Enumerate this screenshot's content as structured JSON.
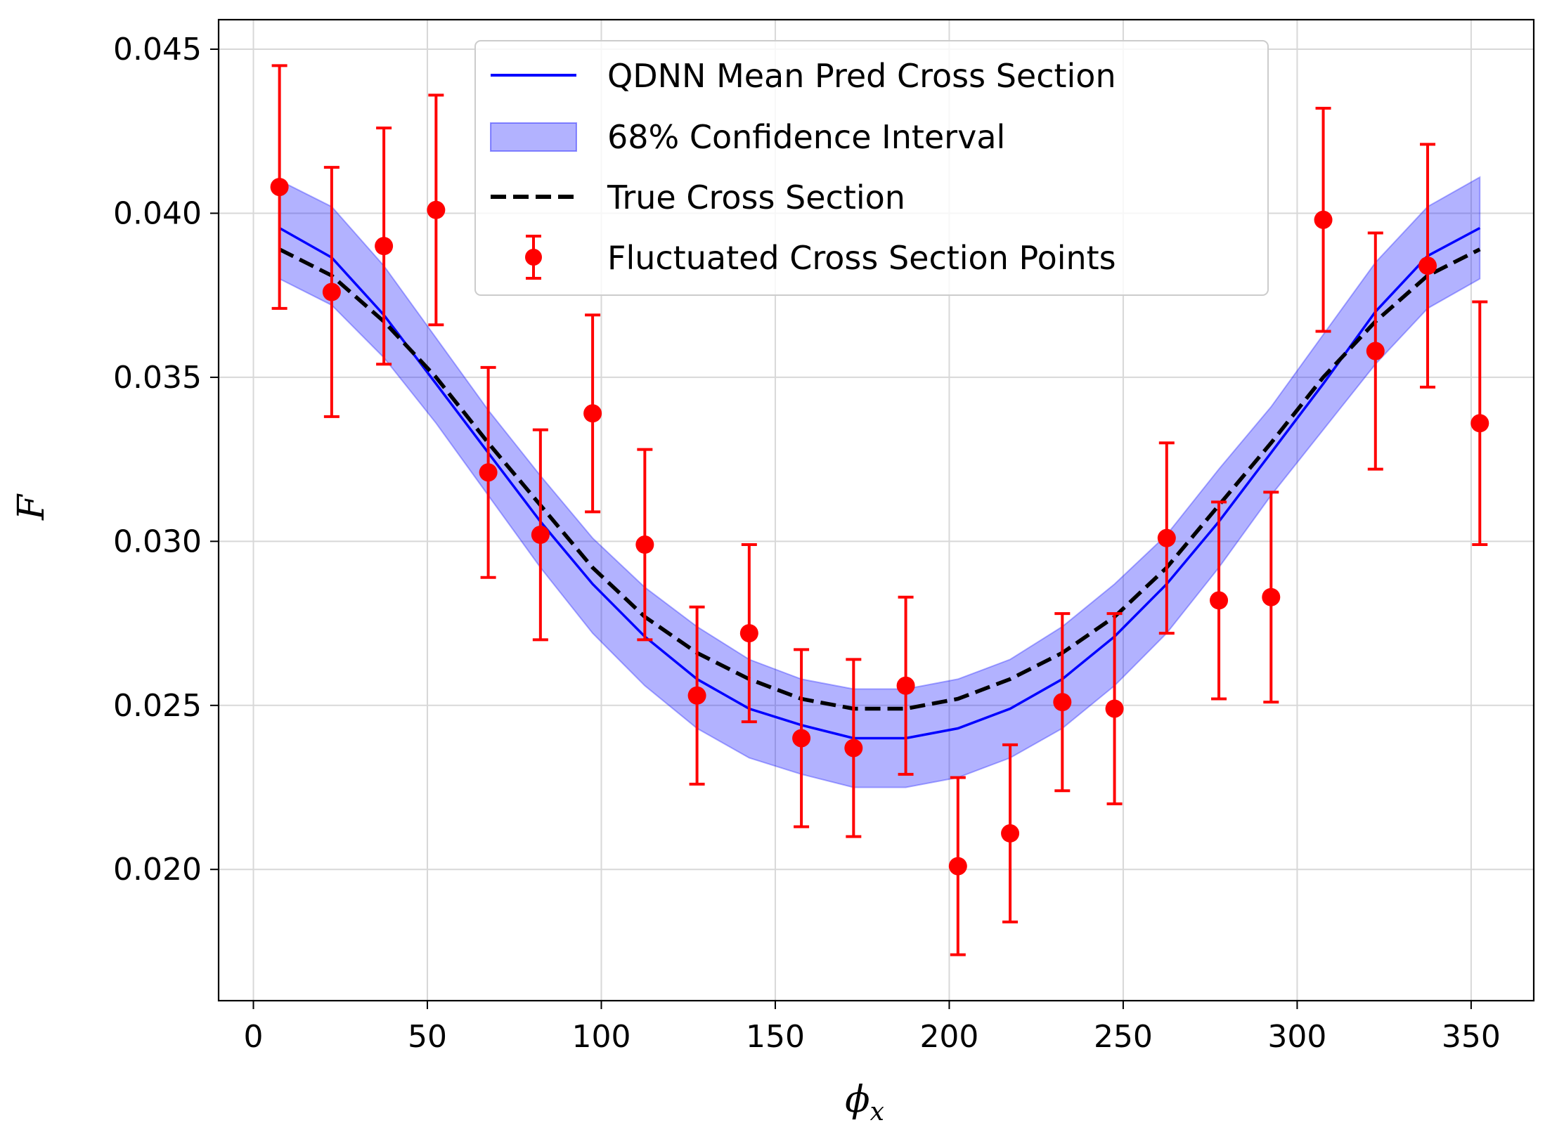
{
  "chart_data": {
    "type": "line",
    "title": "",
    "xlabel_main": "ϕ",
    "xlabel_sub": "x",
    "ylabel": "F",
    "xlim": [
      -10,
      368
    ],
    "ylim": [
      0.016,
      0.0459
    ],
    "xticks": [
      0,
      50,
      100,
      150,
      200,
      250,
      300,
      350
    ],
    "yticks": [
      0.02,
      0.025,
      0.03,
      0.035,
      0.04,
      0.045
    ],
    "xtick_labels": [
      "0",
      "50",
      "100",
      "150",
      "200",
      "250",
      "300",
      "350"
    ],
    "ytick_labels": [
      "0.020",
      "0.025",
      "0.030",
      "0.035",
      "0.040",
      "0.045"
    ],
    "grid": true,
    "legend_position": "top-center",
    "x": [
      7.5,
      22.5,
      37.5,
      52.5,
      67.5,
      82.5,
      97.5,
      112.5,
      127.5,
      142.5,
      157.5,
      172.5,
      187.5,
      202.5,
      217.5,
      232.5,
      247.5,
      262.5,
      277.5,
      292.5,
      307.5,
      322.5,
      337.5,
      352.5
    ],
    "series": [
      {
        "name": "QDNN Mean Pred Cross Section",
        "kind": "line",
        "color": "#0000ff",
        "values": [
          0.03955,
          0.03865,
          0.0369,
          0.0348,
          0.0327,
          0.0306,
          0.0287,
          0.0271,
          0.0258,
          0.0249,
          0.0244,
          0.024,
          0.024,
          0.0243,
          0.0249,
          0.0258,
          0.0271,
          0.0287,
          0.0306,
          0.0327,
          0.0348,
          0.037,
          0.0387,
          0.03955
        ]
      },
      {
        "name": "68% Confidence Interval",
        "kind": "band",
        "color": "#0000ff",
        "lower": [
          0.038,
          0.0372,
          0.0356,
          0.0336,
          0.0314,
          0.0292,
          0.0272,
          0.0256,
          0.0243,
          0.0234,
          0.0229,
          0.0225,
          0.0225,
          0.0228,
          0.0234,
          0.0243,
          0.0256,
          0.0272,
          0.0292,
          0.0314,
          0.0334,
          0.0354,
          0.0371,
          0.038
        ],
        "upper": [
          0.041,
          0.0402,
          0.0384,
          0.0362,
          0.034,
          0.032,
          0.0301,
          0.0286,
          0.0274,
          0.0264,
          0.0258,
          0.0255,
          0.0255,
          0.0258,
          0.0264,
          0.0274,
          0.0287,
          0.0302,
          0.0322,
          0.0341,
          0.0363,
          0.0385,
          0.0402,
          0.0411
        ]
      },
      {
        "name": "True Cross Section",
        "kind": "dashed",
        "color": "#000000",
        "values": [
          0.0389,
          0.0381,
          0.0367,
          0.035,
          0.033,
          0.0311,
          0.0292,
          0.0277,
          0.0266,
          0.0258,
          0.0252,
          0.0249,
          0.0249,
          0.0252,
          0.0258,
          0.0266,
          0.0277,
          0.0292,
          0.0311,
          0.033,
          0.035,
          0.0367,
          0.0381,
          0.0389
        ]
      },
      {
        "name": "Fluctuated Cross Section Points",
        "kind": "errorbar",
        "color": "#ff0000",
        "values": [
          0.0408,
          0.0376,
          0.039,
          0.0401,
          0.0321,
          0.0302,
          0.0339,
          0.0299,
          0.0253,
          0.0272,
          0.024,
          0.0237,
          0.0256,
          0.0201,
          0.0211,
          0.0251,
          0.0249,
          0.0301,
          0.0282,
          0.0283,
          0.0398,
          0.0358,
          0.0384,
          0.0336
        ],
        "errors": [
          0.0037,
          0.0038,
          0.0036,
          0.0035,
          0.0032,
          0.0032,
          0.003,
          0.0029,
          0.0027,
          0.0027,
          0.0027,
          0.0027,
          0.0027,
          0.0027,
          0.0027,
          0.0027,
          0.0029,
          0.0029,
          0.003,
          0.0032,
          0.0034,
          0.0036,
          0.0037,
          0.0037
        ]
      }
    ]
  }
}
